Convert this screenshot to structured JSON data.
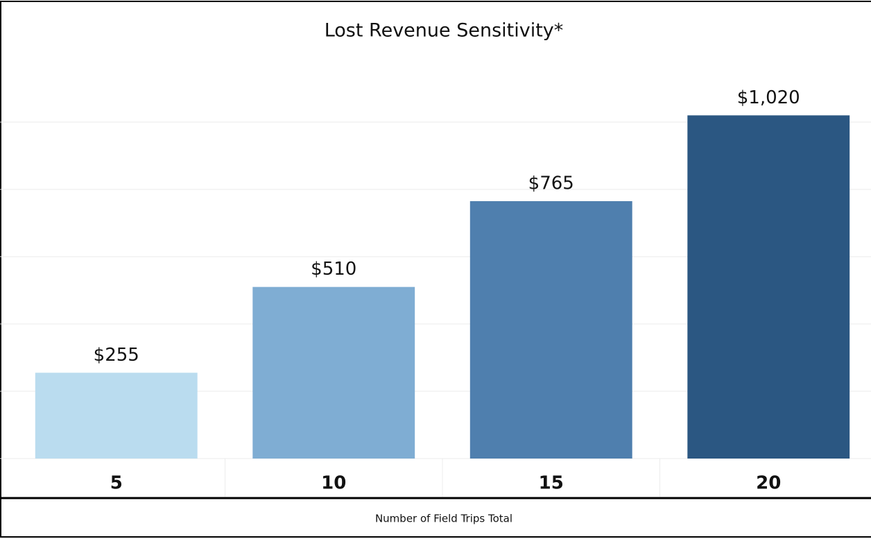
{
  "chart_data": {
    "type": "bar",
    "title": "Lost Revenue Sensitivity*",
    "categories": [
      "5",
      "10",
      "15",
      "20"
    ],
    "values": [
      255,
      510,
      765,
      1020
    ],
    "value_labels": [
      "$255",
      "$510",
      "$765",
      "$1,020"
    ],
    "colors": [
      "#badcef",
      "#7fadd3",
      "#4f7fae",
      "#2b5782"
    ],
    "x_label": "Number of Field Trips Total",
    "ylim": [
      0,
      1200
    ],
    "yticks": [
      0,
      200,
      400,
      600,
      800,
      1000
    ],
    "grid": true
  }
}
